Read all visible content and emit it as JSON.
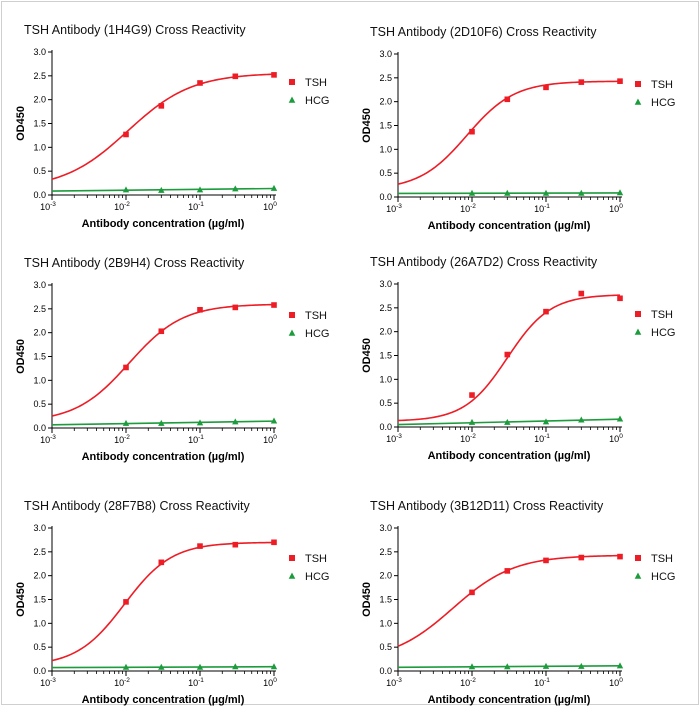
{
  "chart_data": [
    {
      "type": "scatter",
      "title": "TSH Antibody (1H4G9) Cross Reactivity",
      "xlabel": "Antibody concentration (µg/ml)",
      "ylabel": "OD450",
      "xscale": "log",
      "xlim": [
        0.001,
        1
      ],
      "ylim": [
        0,
        3.0
      ],
      "yticks": [
        "0.0",
        "0.5",
        "1.0",
        "1.5",
        "2.0",
        "2.5",
        "3.0"
      ],
      "xticks": [
        {
          "base": "10",
          "exp": "-3"
        },
        {
          "base": "10",
          "exp": "-2"
        },
        {
          "base": "10",
          "exp": "-1"
        },
        {
          "base": "10",
          "exp": "0"
        }
      ],
      "legend_position": "right",
      "series": [
        {
          "name": "TSH",
          "color": "#ee1c25",
          "marker": "square",
          "fit": "sigmoid",
          "x": [
            0.01,
            0.03,
            0.1,
            0.3,
            1
          ],
          "y": [
            1.27,
            1.87,
            2.35,
            2.49,
            2.52
          ],
          "fit_bottom": 0.12,
          "fit_top": 2.56,
          "fit_ec50": 0.0105,
          "fit_hill": 1.0
        },
        {
          "name": "HCG",
          "color": "#1c9c3c",
          "marker": "triangle",
          "fit": "linear",
          "x": [
            0.01,
            0.03,
            0.1,
            0.3,
            1
          ],
          "y": [
            0.11,
            0.1,
            0.11,
            0.13,
            0.14
          ]
        }
      ]
    },
    {
      "type": "scatter",
      "title": "TSH Antibody (2D10F6) Cross Reactivity",
      "xlabel": "Antibody concentration (µg/ml)",
      "ylabel": "OD450",
      "xscale": "log",
      "xlim": [
        0.001,
        1
      ],
      "ylim": [
        0,
        3.0
      ],
      "yticks": [
        "0.0",
        "0.5",
        "1.0",
        "1.5",
        "2.0",
        "2.5",
        "3.0"
      ],
      "xticks": [
        {
          "base": "10",
          "exp": "-3"
        },
        {
          "base": "10",
          "exp": "-2"
        },
        {
          "base": "10",
          "exp": "-1"
        },
        {
          "base": "10",
          "exp": "0"
        }
      ],
      "legend_position": "right",
      "series": [
        {
          "name": "TSH",
          "color": "#ee1c25",
          "marker": "square",
          "fit": "sigmoid",
          "x": [
            0.01,
            0.03,
            0.1,
            0.3,
            1
          ],
          "y": [
            1.37,
            2.05,
            2.3,
            2.41,
            2.43
          ],
          "fit_bottom": 0.15,
          "fit_top": 2.43,
          "fit_ec50": 0.0085,
          "fit_hill": 1.35
        },
        {
          "name": "HCG",
          "color": "#1c9c3c",
          "marker": "triangle",
          "fit": "linear",
          "x": [
            0.01,
            0.03,
            0.1,
            0.3,
            1
          ],
          "y": [
            0.08,
            0.08,
            0.08,
            0.08,
            0.09
          ]
        }
      ]
    },
    {
      "type": "scatter",
      "title": "TSH Antibody (2B9H4) Cross Reactivity",
      "xlabel": "Antibody concentration (µg/ml)",
      "ylabel": "OD450",
      "xscale": "log",
      "xlim": [
        0.001,
        1
      ],
      "ylim": [
        0,
        3.0
      ],
      "yticks": [
        "0.0",
        "0.5",
        "1.0",
        "1.5",
        "2.0",
        "2.5",
        "3.0"
      ],
      "xticks": [
        {
          "base": "10",
          "exp": "-3"
        },
        {
          "base": "10",
          "exp": "-2"
        },
        {
          "base": "10",
          "exp": "-1"
        },
        {
          "base": "10",
          "exp": "0"
        }
      ],
      "legend_position": "right",
      "series": [
        {
          "name": "TSH",
          "color": "#ee1c25",
          "marker": "square",
          "fit": "sigmoid",
          "x": [
            0.01,
            0.03,
            0.1,
            0.3,
            1
          ],
          "y": [
            1.27,
            2.03,
            2.48,
            2.53,
            2.58
          ],
          "fit_bottom": 0.12,
          "fit_top": 2.6,
          "fit_ec50": 0.011,
          "fit_hill": 1.2
        },
        {
          "name": "HCG",
          "color": "#1c9c3c",
          "marker": "triangle",
          "fit": "linear",
          "x": [
            0.01,
            0.03,
            0.1,
            0.3,
            1
          ],
          "y": [
            0.1,
            0.1,
            0.11,
            0.13,
            0.15
          ]
        }
      ]
    },
    {
      "type": "scatter",
      "title": "TSH Antibody (26A7D2) Cross Reactivity",
      "xlabel": "Antibody concentration (µg/ml)",
      "ylabel": "OD450",
      "xscale": "log",
      "xlim": [
        0.001,
        1
      ],
      "ylim": [
        0,
        3.0
      ],
      "yticks": [
        "0.0",
        "0.5",
        "1.0",
        "1.5",
        "2.0",
        "2.5",
        "3.0"
      ],
      "xticks": [
        {
          "base": "10",
          "exp": "-3"
        },
        {
          "base": "10",
          "exp": "-2"
        },
        {
          "base": "10",
          "exp": "-1"
        },
        {
          "base": "10",
          "exp": "0"
        }
      ],
      "legend_position": "right",
      "series": [
        {
          "name": "TSH",
          "color": "#ee1c25",
          "marker": "square",
          "fit": "sigmoid",
          "x": [
            0.01,
            0.03,
            0.1,
            0.3,
            1
          ],
          "y": [
            0.67,
            1.52,
            2.42,
            2.8,
            2.7
          ],
          "fit_bottom": 0.12,
          "fit_top": 2.78,
          "fit_ec50": 0.03,
          "fit_hill": 1.5
        },
        {
          "name": "HCG",
          "color": "#1c9c3c",
          "marker": "triangle",
          "fit": "linear",
          "x": [
            0.01,
            0.03,
            0.1,
            0.3,
            1
          ],
          "y": [
            0.1,
            0.1,
            0.11,
            0.15,
            0.17
          ]
        }
      ]
    },
    {
      "type": "scatter",
      "title": "TSH Antibody (28F7B8) Cross Reactivity",
      "xlabel": "Antibody concentration (µg/ml)",
      "ylabel": "OD450",
      "xscale": "log",
      "xlim": [
        0.001,
        1
      ],
      "ylim": [
        0,
        3.0
      ],
      "yticks": [
        "0.0",
        "0.5",
        "1.0",
        "1.5",
        "2.0",
        "2.5",
        "3.0"
      ],
      "xticks": [
        {
          "base": "10",
          "exp": "-3"
        },
        {
          "base": "10",
          "exp": "-2"
        },
        {
          "base": "10",
          "exp": "-1"
        },
        {
          "base": "10",
          "exp": "0"
        }
      ],
      "legend_position": "right",
      "series": [
        {
          "name": "TSH",
          "color": "#ee1c25",
          "marker": "square",
          "fit": "sigmoid",
          "x": [
            0.01,
            0.03,
            0.1,
            0.3,
            1
          ],
          "y": [
            1.45,
            2.28,
            2.62,
            2.65,
            2.7
          ],
          "fit_bottom": 0.1,
          "fit_top": 2.7,
          "fit_ec50": 0.0095,
          "fit_hill": 1.35
        },
        {
          "name": "HCG",
          "color": "#1c9c3c",
          "marker": "triangle",
          "fit": "linear",
          "x": [
            0.01,
            0.03,
            0.1,
            0.3,
            1
          ],
          "y": [
            0.08,
            0.08,
            0.08,
            0.09,
            0.09
          ]
        }
      ]
    },
    {
      "type": "scatter",
      "title": "TSH Antibody (3B12D11) Cross Reactivity",
      "xlabel": "Antibody concentration (µg/ml)",
      "ylabel": "OD450",
      "xscale": "log",
      "xlim": [
        0.001,
        1
      ],
      "ylim": [
        0,
        3.0
      ],
      "yticks": [
        "0.0",
        "0.5",
        "1.0",
        "1.5",
        "2.0",
        "2.5",
        "3.0"
      ],
      "xticks": [
        {
          "base": "10",
          "exp": "-3"
        },
        {
          "base": "10",
          "exp": "-2"
        },
        {
          "base": "10",
          "exp": "-1"
        },
        {
          "base": "10",
          "exp": "0"
        }
      ],
      "legend_position": "right",
      "series": [
        {
          "name": "TSH",
          "color": "#ee1c25",
          "marker": "square",
          "fit": "sigmoid",
          "x": [
            0.01,
            0.03,
            0.1,
            0.3,
            1
          ],
          "y": [
            1.65,
            2.1,
            2.32,
            2.38,
            2.4
          ],
          "fit_bottom": 0.2,
          "fit_top": 2.43,
          "fit_ec50": 0.0055,
          "fit_hill": 1.05
        },
        {
          "name": "HCG",
          "color": "#1c9c3c",
          "marker": "triangle",
          "fit": "linear",
          "x": [
            0.01,
            0.03,
            0.1,
            0.3,
            1
          ],
          "y": [
            0.09,
            0.09,
            0.1,
            0.1,
            0.11
          ]
        }
      ]
    }
  ]
}
